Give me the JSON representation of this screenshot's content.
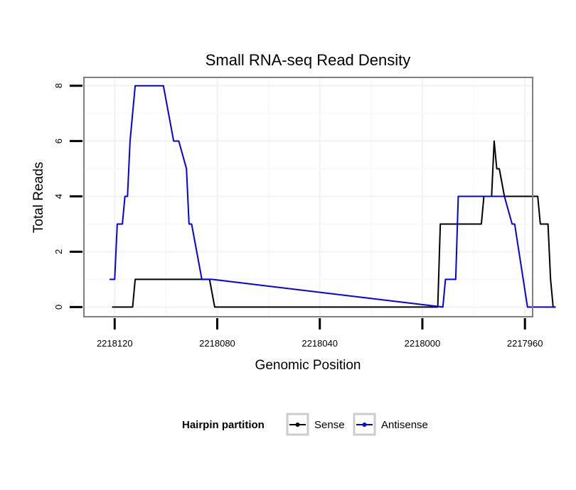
{
  "chart_data": {
    "type": "line",
    "title": "Small RNA-seq Read Density",
    "xlabel": "Genomic Position",
    "ylabel": "Total Reads",
    "xlim": [
      2218132,
      2217957
    ],
    "x_reversed": true,
    "ylim": [
      -0.35,
      8.3
    ],
    "xticks": [
      2218120,
      2218080,
      2218040,
      2218000,
      2217960
    ],
    "xtick_labels": [
      "2218120",
      "2218080",
      "2218040",
      "2218000",
      "2217960"
    ],
    "yticks": [
      0,
      2,
      4,
      6,
      8
    ],
    "ytick_labels": [
      "0",
      "2",
      "4",
      "6",
      "8"
    ],
    "grid": true,
    "legend": {
      "title": "Hairpin partition",
      "position": "bottom",
      "entries": [
        "Sense",
        "Antisense"
      ]
    },
    "series": [
      {
        "name": "Sense",
        "color": "#000000",
        "x": [
          2218121,
          2218113,
          2218112,
          2218083,
          2218081,
          2217994,
          2217993,
          2217977,
          2217976,
          2217973,
          2217972,
          2217971,
          2217970,
          2217968,
          2217967,
          2217955,
          2217954,
          2217951,
          2217950,
          2217949,
          2217948
        ],
        "y": [
          0,
          0,
          1,
          1,
          0,
          0,
          3,
          3,
          4,
          4,
          6,
          5,
          5,
          4,
          4,
          4,
          3,
          3,
          1,
          0,
          0
        ]
      },
      {
        "name": "Antisense",
        "color": "#0000ee",
        "x": [
          2218122,
          2218120,
          2218119,
          2218117,
          2218116,
          2218115,
          2218114,
          2218113,
          2218112,
          2218111,
          2218110,
          2218109,
          2218108,
          2218107,
          2218101,
          2218099,
          2218097,
          2218096,
          2218095,
          2218092,
          2218091,
          2218090,
          2218086,
          2218082,
          2217992,
          2217991,
          2217987,
          2217986,
          2217971,
          2217968,
          2217965,
          2217964,
          2217959,
          2217948
        ],
        "y": [
          1,
          1,
          3,
          3,
          4,
          4,
          6,
          7,
          8,
          8,
          8,
          8,
          8,
          8,
          8,
          7,
          6,
          6,
          6,
          5,
          3,
          3,
          1,
          1,
          0,
          1,
          1,
          4,
          4,
          4,
          3,
          3,
          0,
          0
        ]
      }
    ]
  }
}
